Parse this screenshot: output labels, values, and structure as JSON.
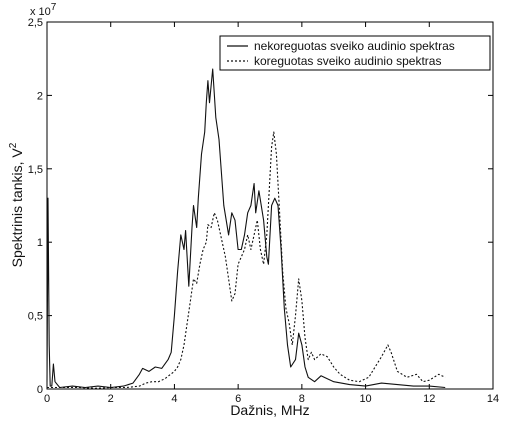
{
  "chart_data": {
    "type": "line",
    "xlabel": "Dažnis, MHz",
    "ylabel_main": "Spektrinis tankis, V",
    "ylabel_sup": "2",
    "y_multiplier": {
      "base": "x 10",
      "exponent": "7"
    },
    "xlim": [
      0,
      14
    ],
    "ylim": [
      0,
      2.5
    ],
    "x_ticks": [
      0,
      2,
      4,
      6,
      8,
      10,
      12,
      14
    ],
    "x_tick_labels": [
      "0",
      "2",
      "4",
      "6",
      "8",
      "10",
      "12",
      "14"
    ],
    "y_ticks": [
      0,
      0.5,
      1,
      1.5,
      2,
      2.5
    ],
    "y_tick_labels": [
      "0",
      "0,5",
      "1",
      "1,5",
      "2",
      "2,5"
    ],
    "grid": false,
    "legend_position": "top-right",
    "series": [
      {
        "name": "nekoreguotas sveiko audinio spektras",
        "style": "solid",
        "color": "#111111",
        "points": [
          [
            0,
            0.05
          ],
          [
            0.03,
            1.3
          ],
          [
            0.07,
            0.3
          ],
          [
            0.1,
            0.02
          ],
          [
            0.15,
            0.02
          ],
          [
            0.2,
            0.17
          ],
          [
            0.25,
            0.05
          ],
          [
            0.4,
            0.01
          ],
          [
            0.8,
            0.02
          ],
          [
            1.2,
            0.01
          ],
          [
            1.6,
            0.02
          ],
          [
            2.0,
            0.01
          ],
          [
            2.4,
            0.02
          ],
          [
            2.7,
            0.04
          ],
          [
            2.9,
            0.1
          ],
          [
            3.0,
            0.14
          ],
          [
            3.2,
            0.12
          ],
          [
            3.4,
            0.15
          ],
          [
            3.6,
            0.14
          ],
          [
            3.8,
            0.2
          ],
          [
            3.9,
            0.25
          ],
          [
            4.0,
            0.5
          ],
          [
            4.1,
            0.8
          ],
          [
            4.2,
            1.05
          ],
          [
            4.3,
            0.95
          ],
          [
            4.35,
            1.08
          ],
          [
            4.45,
            0.7
          ],
          [
            4.55,
            1.1
          ],
          [
            4.6,
            1.25
          ],
          [
            4.7,
            1.1
          ],
          [
            4.75,
            1.3
          ],
          [
            4.85,
            1.6
          ],
          [
            4.95,
            1.75
          ],
          [
            5.0,
            1.95
          ],
          [
            5.05,
            2.1
          ],
          [
            5.1,
            1.95
          ],
          [
            5.2,
            2.18
          ],
          [
            5.3,
            1.85
          ],
          [
            5.4,
            1.7
          ],
          [
            5.45,
            1.55
          ],
          [
            5.55,
            1.25
          ],
          [
            5.7,
            1.05
          ],
          [
            5.8,
            1.2
          ],
          [
            5.9,
            1.15
          ],
          [
            6.0,
            0.95
          ],
          [
            6.1,
            0.95
          ],
          [
            6.2,
            1.05
          ],
          [
            6.3,
            1.2
          ],
          [
            6.4,
            1.25
          ],
          [
            6.5,
            1.4
          ],
          [
            6.55,
            1.2
          ],
          [
            6.65,
            1.35
          ],
          [
            6.8,
            1.15
          ],
          [
            6.9,
            0.9
          ],
          [
            6.95,
            0.85
          ],
          [
            7.05,
            1.25
          ],
          [
            7.15,
            1.3
          ],
          [
            7.25,
            1.25
          ],
          [
            7.35,
            0.95
          ],
          [
            7.45,
            0.55
          ],
          [
            7.55,
            0.3
          ],
          [
            7.65,
            0.15
          ],
          [
            7.8,
            0.2
          ],
          [
            7.9,
            0.38
          ],
          [
            8.0,
            0.3
          ],
          [
            8.1,
            0.15
          ],
          [
            8.2,
            0.08
          ],
          [
            8.4,
            0.05
          ],
          [
            8.6,
            0.09
          ],
          [
            8.8,
            0.07
          ],
          [
            9.0,
            0.05
          ],
          [
            9.5,
            0.03
          ],
          [
            10.0,
            0.02
          ],
          [
            10.5,
            0.04
          ],
          [
            11.0,
            0.03
          ],
          [
            11.5,
            0.02
          ],
          [
            12.0,
            0.02
          ],
          [
            12.5,
            0.01
          ]
        ]
      },
      {
        "name": "koreguotas sveiko audinio spektras",
        "style": "dotted",
        "color": "#111111",
        "points": [
          [
            0,
            0.01
          ],
          [
            0.5,
            0.01
          ],
          [
            1.0,
            0.01
          ],
          [
            1.5,
            0.005
          ],
          [
            2.0,
            0.01
          ],
          [
            2.5,
            0.01
          ],
          [
            2.9,
            0.02
          ],
          [
            3.1,
            0.04
          ],
          [
            3.3,
            0.05
          ],
          [
            3.5,
            0.05
          ],
          [
            3.7,
            0.07
          ],
          [
            4.0,
            0.12
          ],
          [
            4.1,
            0.15
          ],
          [
            4.2,
            0.2
          ],
          [
            4.3,
            0.3
          ],
          [
            4.4,
            0.45
          ],
          [
            4.5,
            0.6
          ],
          [
            4.6,
            0.75
          ],
          [
            4.7,
            0.72
          ],
          [
            4.8,
            0.85
          ],
          [
            4.9,
            0.95
          ],
          [
            5.0,
            1.0
          ],
          [
            5.05,
            1.12
          ],
          [
            5.15,
            1.1
          ],
          [
            5.25,
            1.2
          ],
          [
            5.35,
            1.15
          ],
          [
            5.5,
            1.0
          ],
          [
            5.6,
            0.9
          ],
          [
            5.7,
            0.75
          ],
          [
            5.8,
            0.6
          ],
          [
            5.9,
            0.65
          ],
          [
            6.0,
            0.85
          ],
          [
            6.1,
            0.9
          ],
          [
            6.2,
            0.95
          ],
          [
            6.3,
            1.05
          ],
          [
            6.4,
            0.95
          ],
          [
            6.5,
            1.05
          ],
          [
            6.6,
            1.15
          ],
          [
            6.7,
            0.95
          ],
          [
            6.8,
            0.85
          ],
          [
            6.9,
            1.05
          ],
          [
            7.0,
            1.45
          ],
          [
            7.05,
            1.65
          ],
          [
            7.12,
            1.75
          ],
          [
            7.2,
            1.6
          ],
          [
            7.3,
            1.2
          ],
          [
            7.4,
            0.8
          ],
          [
            7.5,
            0.55
          ],
          [
            7.6,
            0.45
          ],
          [
            7.7,
            0.3
          ],
          [
            7.8,
            0.5
          ],
          [
            7.9,
            0.75
          ],
          [
            8.0,
            0.6
          ],
          [
            8.1,
            0.35
          ],
          [
            8.2,
            0.2
          ],
          [
            8.3,
            0.25
          ],
          [
            8.4,
            0.2
          ],
          [
            8.6,
            0.24
          ],
          [
            8.8,
            0.22
          ],
          [
            9.0,
            0.15
          ],
          [
            9.2,
            0.1
          ],
          [
            9.5,
            0.06
          ],
          [
            9.8,
            0.05
          ],
          [
            10.1,
            0.08
          ],
          [
            10.3,
            0.15
          ],
          [
            10.5,
            0.22
          ],
          [
            10.7,
            0.3
          ],
          [
            10.8,
            0.25
          ],
          [
            11.0,
            0.12
          ],
          [
            11.3,
            0.08
          ],
          [
            11.6,
            0.1
          ],
          [
            11.8,
            0.05
          ],
          [
            12.0,
            0.06
          ],
          [
            12.3,
            0.1
          ],
          [
            12.5,
            0.08
          ]
        ]
      }
    ]
  }
}
